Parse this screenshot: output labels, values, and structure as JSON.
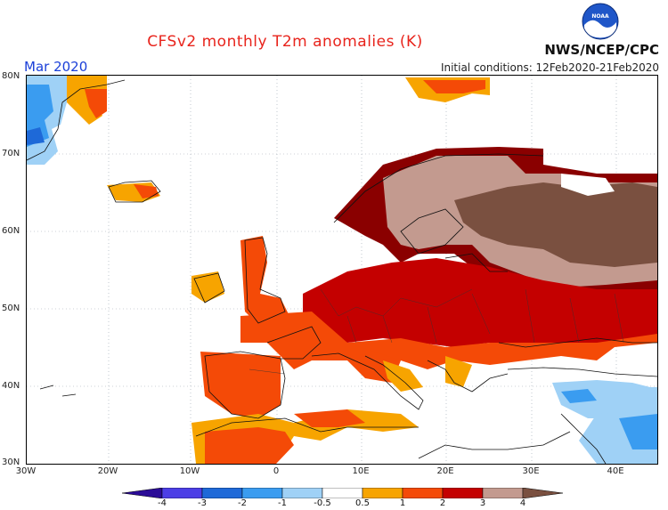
{
  "header": {
    "title": "CFSv2 monthly T2m anomalies (K)",
    "month": "Mar 2020",
    "initial_conditions": "Initial conditions: 12Feb2020-21Feb2020",
    "agency": "NWS/NCEP/CPC",
    "logo_text": "NOAA"
  },
  "map": {
    "latitude_labels": [
      "80N",
      "70N",
      "60N",
      "50N",
      "40N",
      "30N"
    ],
    "longitude_labels": [
      "30W",
      "20W",
      "10W",
      "0",
      "10E",
      "20E",
      "30E",
      "40E"
    ],
    "region": "Europe"
  },
  "legend": {
    "unit": "K",
    "labels": [
      "-4",
      "-3",
      "-2",
      "-1",
      "-0.5",
      "0.5",
      "1",
      "2",
      "3",
      "4"
    ],
    "colors": [
      "#2b0c97",
      "#4c3ee6",
      "#1e69d8",
      "#3a9cf0",
      "#9fd1f6",
      "#ffffff",
      "#f7a400",
      "#f44a07",
      "#c40000",
      "#8a0000",
      "#c39a8f",
      "#7a5040"
    ]
  }
}
